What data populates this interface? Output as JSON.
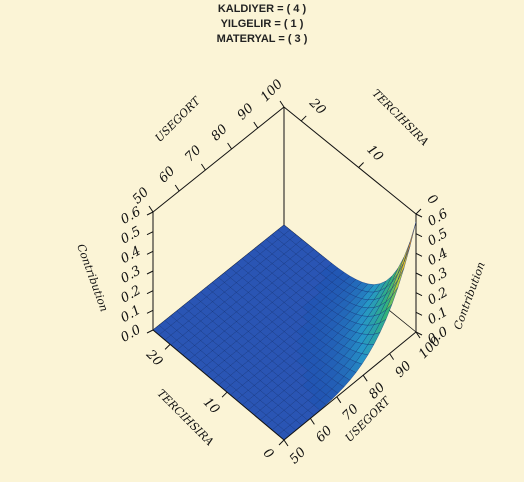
{
  "figure": {
    "conditions": [
      "KALDIYER = ( 4 )",
      "YILGELIR = ( 1 )",
      "MATERYAL = ( 3 )"
    ]
  },
  "chart_data": {
    "type": "surface3d",
    "title_lines": [
      "KALDIYER = ( 4 )",
      "YILGELIR = ( 1 )",
      "MATERYAL = ( 3 )"
    ],
    "axes": {
      "usegort": {
        "label": "USEGORT",
        "range": [
          50,
          100
        ],
        "ticks": [
          "50",
          "60",
          "70",
          "80",
          "90",
          "100"
        ]
      },
      "tercihsira": {
        "label": "TERCIHSIRA",
        "range": [
          0,
          23
        ],
        "ticks": [
          "0",
          "10",
          "20"
        ]
      },
      "contribution": {
        "label": "Contribution",
        "range": [
          0,
          0.6
        ],
        "ticks": [
          "0.0",
          "0.1",
          "0.2",
          "0.3",
          "0.4",
          "0.5",
          "0.6"
        ]
      }
    },
    "surface": {
      "description_values": "Contribution is ~0 everywhere except where USEGORT is high and TERCIHSIRA is low; rises to ~0.56 at USEGORT=100, TERCIHSIRA=0",
      "usegort_values": [
        50,
        55,
        60,
        65,
        70,
        75,
        80,
        85,
        90,
        95,
        100
      ],
      "tercihsira_values": [
        0,
        2,
        4,
        6,
        8,
        10,
        12,
        14,
        16,
        18,
        20,
        23
      ],
      "peak": {
        "usegort": 100,
        "tercihsira": 0,
        "contribution": 0.56
      }
    },
    "colors": {
      "base": "#2a55b4",
      "low": "#1c4fb0",
      "mid": "#2fb6c6",
      "high": "#e7d220",
      "peak": "#c8321e",
      "background": "#fbf4d6"
    }
  }
}
